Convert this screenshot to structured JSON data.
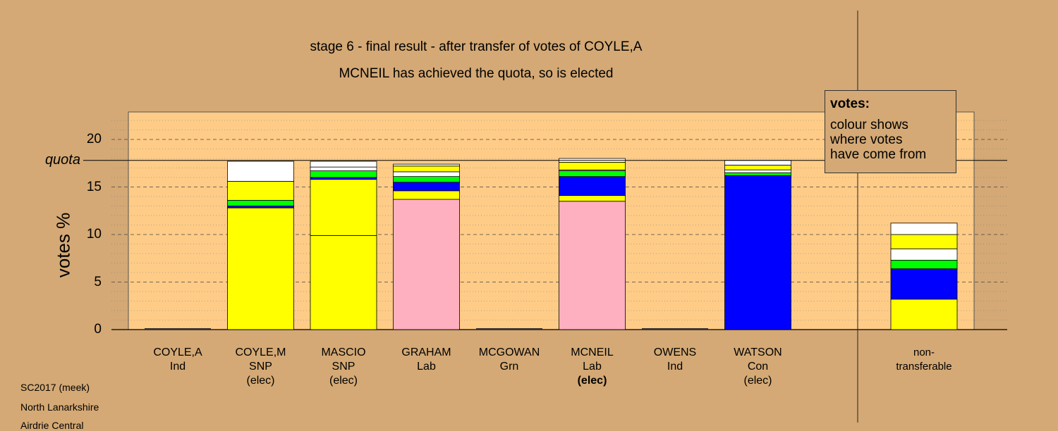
{
  "title": "stage 6 - final result - after transfer of votes of COYLE,A",
  "subtitle": "MCNEIL has achieved the quota, so is elected",
  "legend": {
    "title": "votes:",
    "body": [
      "colour shows",
      "where votes",
      "have come from"
    ]
  },
  "footer": [
    "SC2017 (meek)",
    "North Lanarkshire",
    "Airdrie Central"
  ],
  "quota_label": "quota",
  "non_transferable_label": [
    "non-",
    "transferable"
  ],
  "colors": {
    "SNP": "#ffff00",
    "Lab": "#ffb0c0",
    "Con": "#0000ff",
    "Grn": "#00ff00",
    "Ind": "#ffffff",
    "plot_bg": "#ffcc88",
    "page_bg": "#d4a975"
  },
  "chart_data": {
    "type": "bar",
    "stacked": true,
    "ylabel": "votes %",
    "ylim": [
      0,
      23
    ],
    "yticks": [
      0,
      5,
      10,
      15,
      20
    ],
    "quota": 17.8,
    "grid": true,
    "legend_position": "top-right",
    "candidates": [
      {
        "name": "COYLE,A",
        "party": "Ind",
        "status": "",
        "segments": []
      },
      {
        "name": "COYLE,M",
        "party": "SNP",
        "status": "(elec)",
        "status_bold": false,
        "segments": [
          {
            "from": "SNP",
            "value": 12.8
          },
          {
            "from": "Con",
            "value": 0.2
          },
          {
            "from": "Grn",
            "value": 0.6
          },
          {
            "from": "SNP",
            "value": 2.0
          },
          {
            "from": "Ind",
            "value": 2.1
          }
        ]
      },
      {
        "name": "MASCIO",
        "party": "SNP",
        "status": "(elec)",
        "status_bold": false,
        "segments": [
          {
            "from": "SNP",
            "value": 9.9
          },
          {
            "from": "SNP",
            "value": 5.9
          },
          {
            "from": "Con",
            "value": 0.2
          },
          {
            "from": "Grn",
            "value": 0.7
          },
          {
            "from": "Ind",
            "value": 0.4
          },
          {
            "from": "Ind",
            "value": 0.6
          }
        ]
      },
      {
        "name": "GRAHAM",
        "party": "Lab",
        "status": "",
        "status_bold": false,
        "segments": [
          {
            "from": "Lab",
            "value": 13.7
          },
          {
            "from": "SNP",
            "value": 0.9
          },
          {
            "from": "Con",
            "value": 0.9
          },
          {
            "from": "Grn",
            "value": 0.6
          },
          {
            "from": "Ind",
            "value": 0.5
          },
          {
            "from": "SNP",
            "value": 0.6
          },
          {
            "from": "Ind",
            "value": 0.2
          }
        ]
      },
      {
        "name": "MCGOWAN",
        "party": "Grn",
        "status": "",
        "segments": []
      },
      {
        "name": "MCNEIL",
        "party": "Lab",
        "status": "(elec)",
        "status_bold": true,
        "segments": [
          {
            "from": "Lab",
            "value": 13.5
          },
          {
            "from": "SNP",
            "value": 0.6
          },
          {
            "from": "Con",
            "value": 2.0
          },
          {
            "from": "Grn",
            "value": 0.6
          },
          {
            "from": "Ind",
            "value": 0.1
          },
          {
            "from": "SNP",
            "value": 0.8
          },
          {
            "from": "Ind",
            "value": 0.4
          }
        ]
      },
      {
        "name": "OWENS",
        "party": "Ind",
        "status": "",
        "segments": []
      },
      {
        "name": "WATSON",
        "party": "Con",
        "status": "(elec)",
        "status_bold": false,
        "segments": [
          {
            "from": "Con",
            "value": 16.2
          },
          {
            "from": "Grn",
            "value": 0.3
          },
          {
            "from": "Ind",
            "value": 0.3
          },
          {
            "from": "SNP",
            "value": 0.5
          },
          {
            "from": "Ind",
            "value": 0.5
          }
        ]
      }
    ],
    "non_transferable": {
      "segments": [
        {
          "from": "SNP",
          "value": 3.2
        },
        {
          "from": "Con",
          "value": 3.2
        },
        {
          "from": "Grn",
          "value": 0.9
        },
        {
          "from": "Ind",
          "value": 1.2
        },
        {
          "from": "SNP",
          "value": 1.5
        },
        {
          "from": "Ind",
          "value": 1.2
        }
      ]
    }
  }
}
